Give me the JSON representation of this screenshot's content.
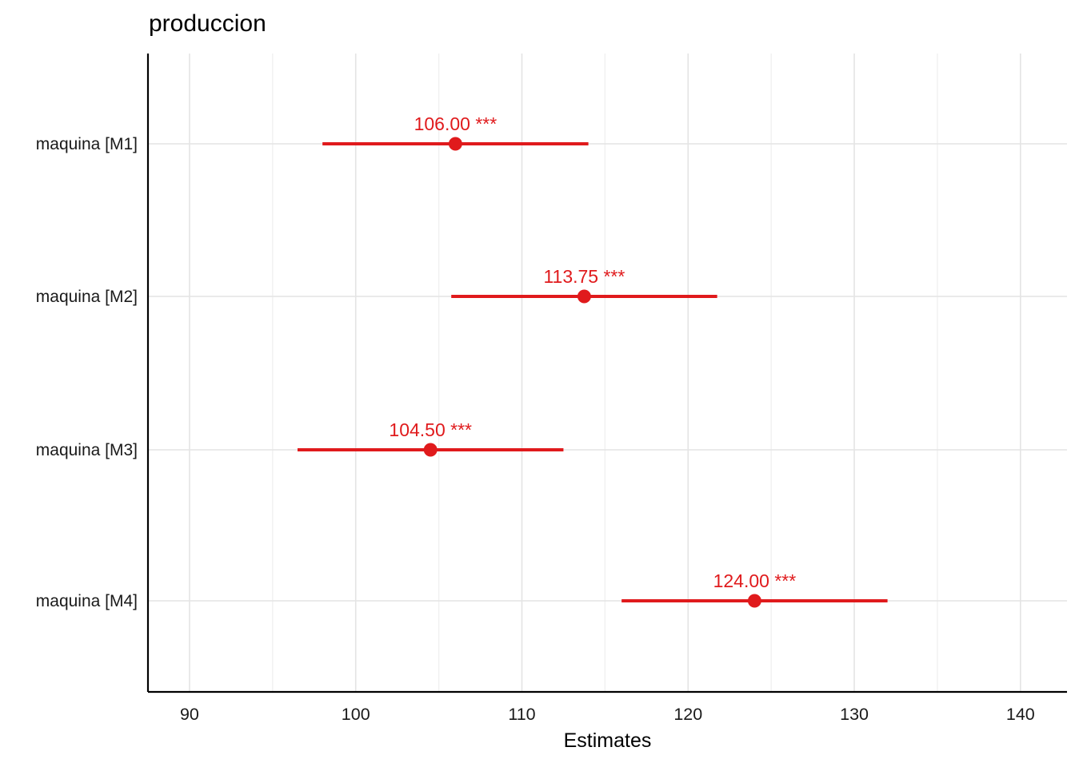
{
  "chart_data": {
    "type": "scatter",
    "subtype": "dot-whisker-estimates",
    "title": "produccion",
    "xlabel": "Estimates",
    "categories": [
      "maquina [M1]",
      "maquina [M2]",
      "maquina [M3]",
      "maquina [M4]"
    ],
    "estimates": [
      106.0,
      113.75,
      104.5,
      124.0
    ],
    "ci_low": [
      98.0,
      105.75,
      96.5,
      116.0
    ],
    "ci_high": [
      114.0,
      121.75,
      112.5,
      132.0
    ],
    "point_labels": [
      "106.00 ***",
      "113.75 ***",
      "104.50 ***",
      "124.00 ***"
    ],
    "x_ticks": [
      90,
      100,
      110,
      120,
      130,
      140
    ],
    "x_tick_labels": [
      "90",
      "100",
      "110",
      "120",
      "130",
      "140"
    ],
    "x_minor_ticks": [
      95,
      105,
      115,
      125,
      135
    ],
    "xlim": [
      87.5,
      142.8
    ],
    "grid": true,
    "legend": null,
    "point_color": "#E01A1C",
    "label_color": "#E01A1C",
    "axis_color": "#000000",
    "grid_major_color": "#E4E4E4",
    "grid_minor_color": "#F0F0F0",
    "text_color": "#1A1A1A"
  }
}
